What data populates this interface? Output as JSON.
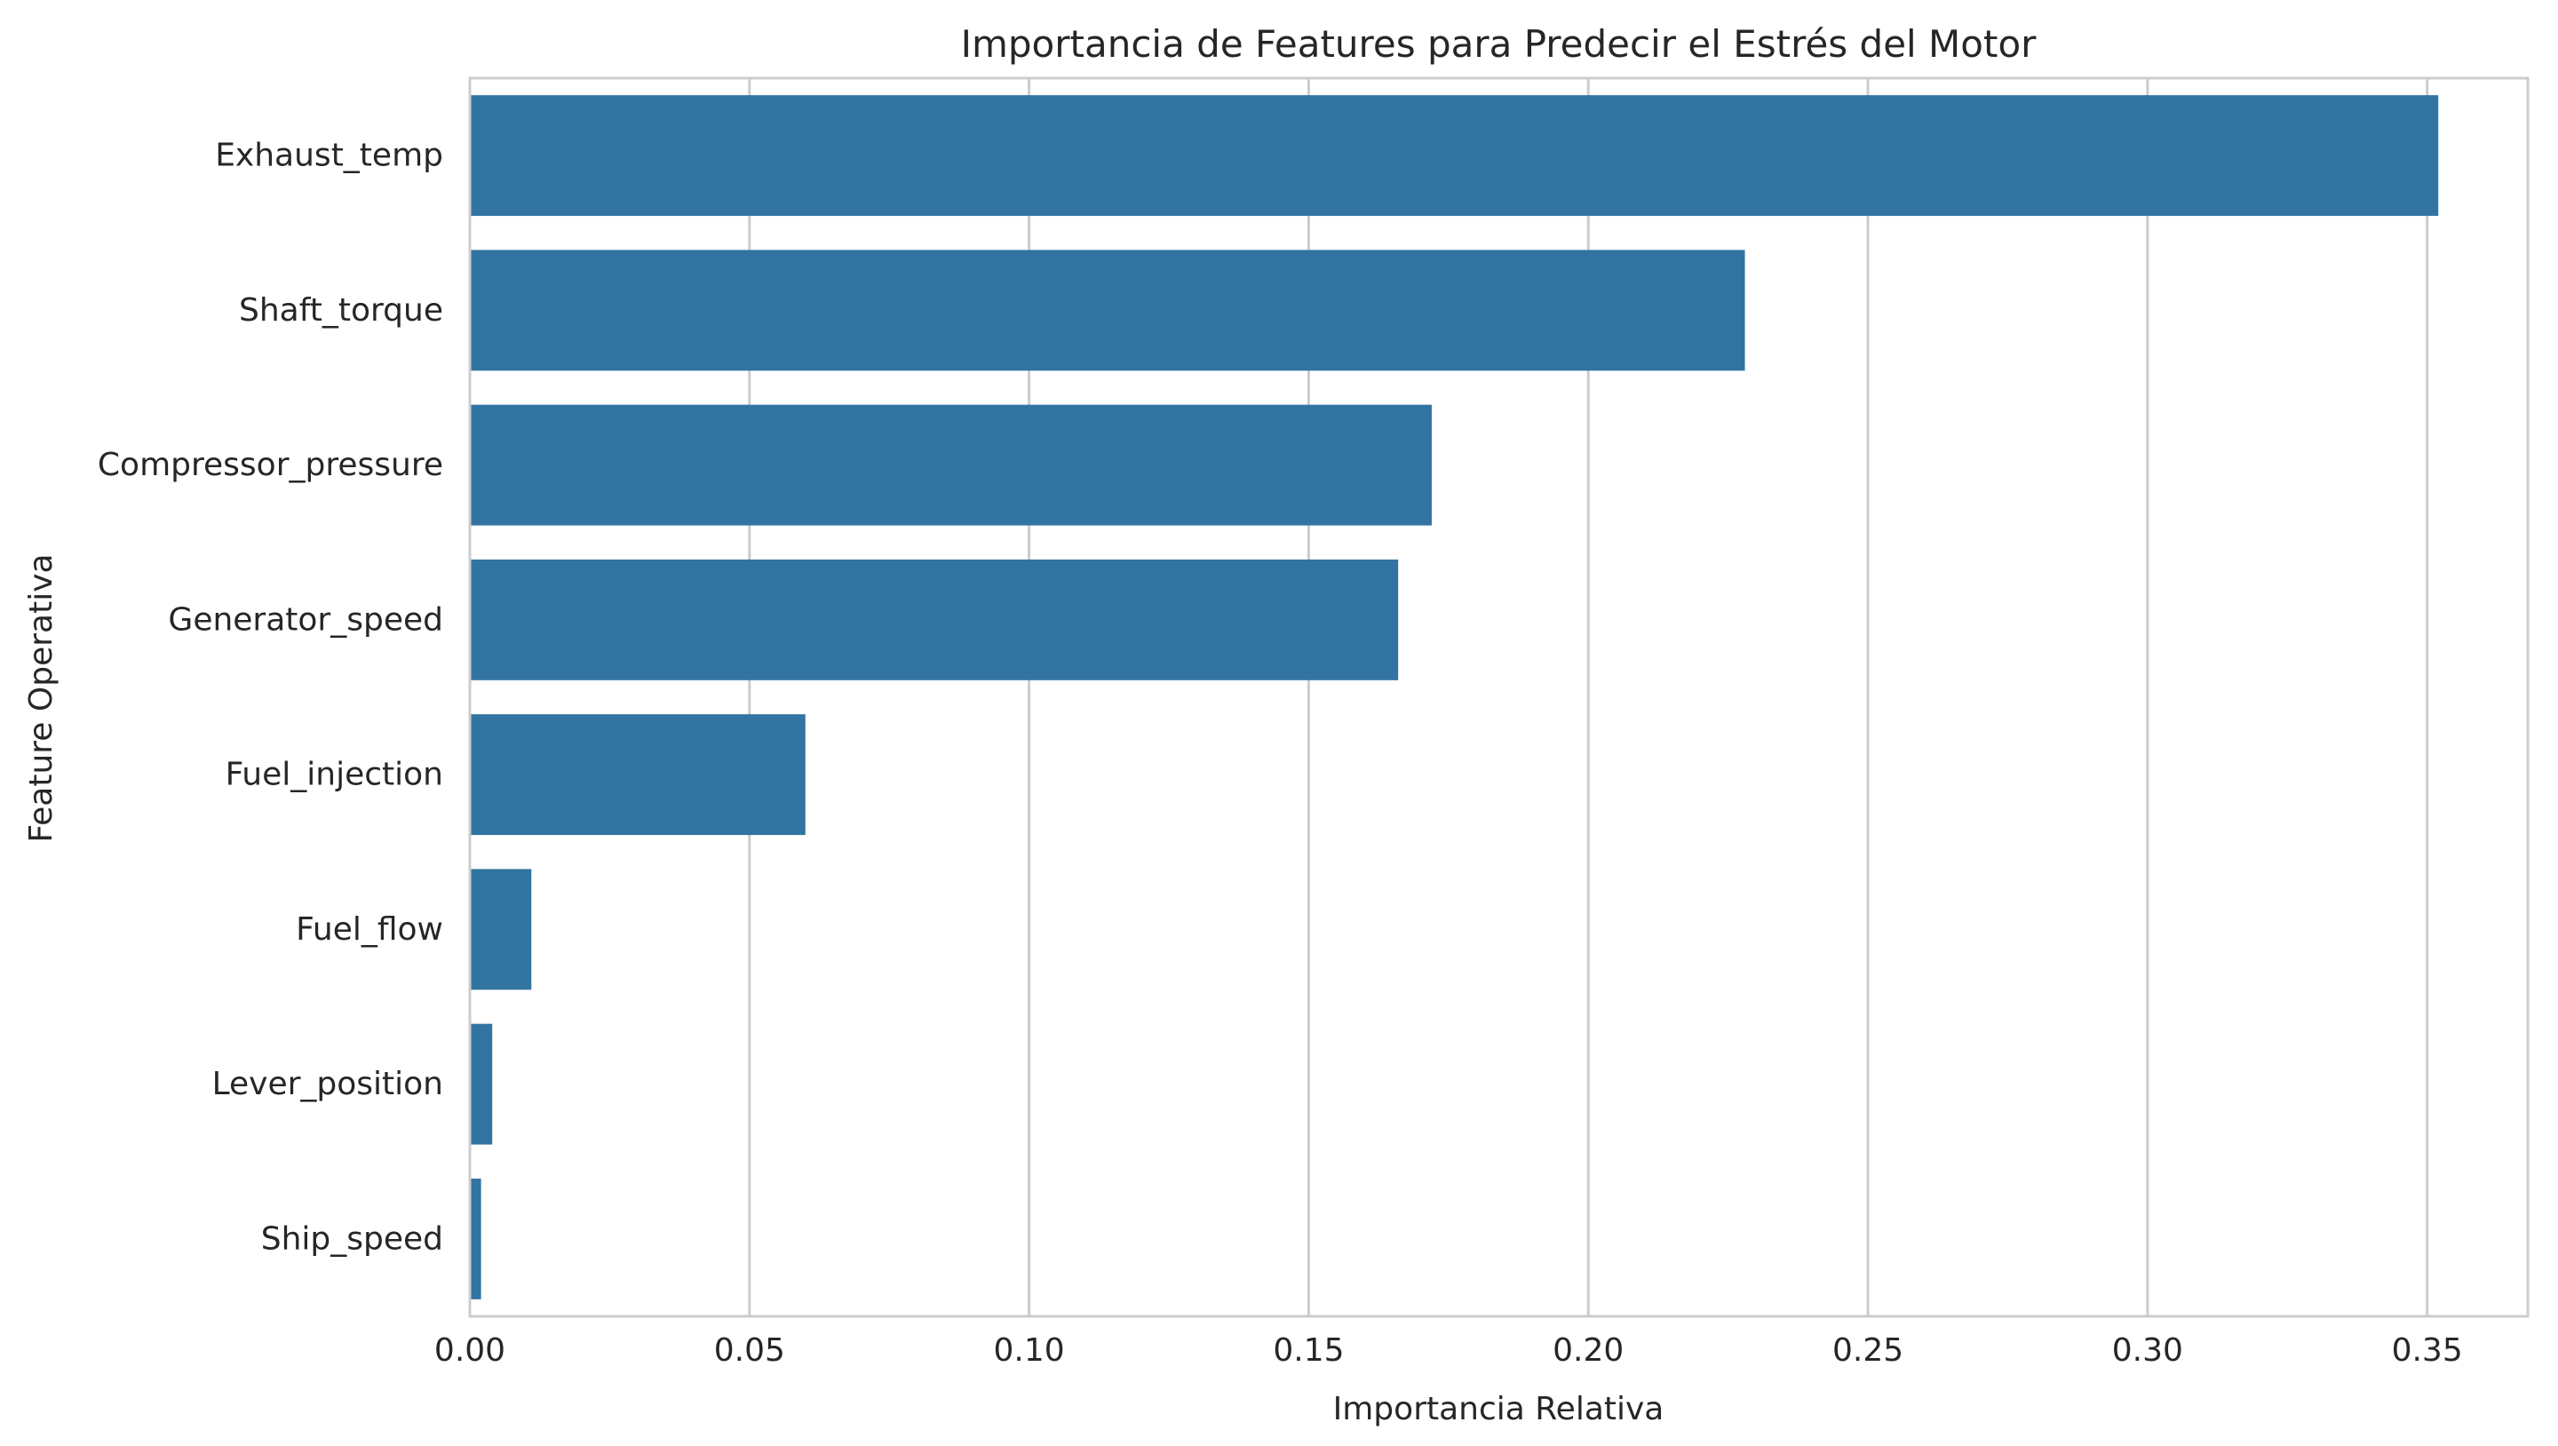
{
  "chart_data": {
    "type": "bar",
    "orientation": "horizontal",
    "title": "Importancia de Features para Predecir el Estrés del Motor",
    "xlabel": "Importancia Relativa",
    "ylabel": "Feature Operativa",
    "categories": [
      "Exhaust_temp",
      "Shaft_torque",
      "Compressor_pressure",
      "Generator_speed",
      "Fuel_injection",
      "Fuel_flow",
      "Lever_position",
      "Ship_speed"
    ],
    "values": [
      0.352,
      0.228,
      0.172,
      0.166,
      0.06,
      0.011,
      0.004,
      0.002
    ],
    "xlim": [
      0,
      0.368
    ],
    "xticks": [
      0.0,
      0.05,
      0.1,
      0.15,
      0.2,
      0.25,
      0.3,
      0.35
    ],
    "xtick_labels": [
      "0.00",
      "0.05",
      "0.10",
      "0.15",
      "0.20",
      "0.25",
      "0.30",
      "0.35"
    ],
    "grid": "vertical",
    "bar_color": "#3274a1",
    "grid_color": "#cccccc",
    "text_color": "#262626"
  }
}
